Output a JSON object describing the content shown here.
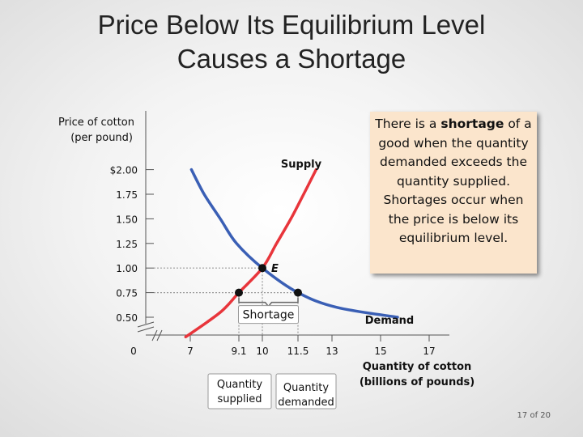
{
  "slide": {
    "title_line1": "Price Below Its Equilibrium Level",
    "title_line2": "Causes a Shortage",
    "page_number": "17 of 20"
  },
  "note": {
    "before": "There is a ",
    "bold": "shortage",
    "after": " of a good when the quantity demanded exceeds the quantity supplied. Shortages occur when the price is below its equilibrium level."
  },
  "colors": {
    "supply": "#e8353b",
    "demand": "#3a5fb5",
    "note_background": "#fbe5cc",
    "guide": "#9a9a9a"
  },
  "chart_data": {
    "type": "line",
    "ylabel_line1": "Price of cotton",
    "ylabel_line2": "(per pound)",
    "xlabel_line1": "Quantity of cotton",
    "xlabel_line2": "(billions of pounds)",
    "y_ticks": [
      {
        "value": 0.5,
        "label": "0.50"
      },
      {
        "value": 0.75,
        "label": "0.75"
      },
      {
        "value": 1.0,
        "label": "1.00"
      },
      {
        "value": 1.25,
        "label": "1.25"
      },
      {
        "value": 1.5,
        "label": "1.50"
      },
      {
        "value": 1.75,
        "label": "1.75"
      },
      {
        "value": 2.0,
        "label": "$2.00"
      }
    ],
    "x_ticks": [
      {
        "value": 7,
        "label": "7"
      },
      {
        "value": 9.1,
        "label": "9.1"
      },
      {
        "value": 10,
        "label": "10"
      },
      {
        "value": 11.5,
        "label": "11.5"
      },
      {
        "value": 13,
        "label": "13"
      },
      {
        "value": 15,
        "label": "15"
      },
      {
        "value": 17,
        "label": "17"
      }
    ],
    "origin_label": "0",
    "axis_break": true,
    "series": [
      {
        "name": "Supply",
        "points": [
          [
            6.8,
            0.3
          ],
          [
            8.3,
            0.55
          ],
          [
            9.1,
            0.75
          ],
          [
            10.0,
            1.0
          ],
          [
            10.6,
            1.25
          ],
          [
            11.2,
            1.5
          ],
          [
            11.75,
            1.75
          ],
          [
            12.3,
            2.0
          ]
        ]
      },
      {
        "name": "Demand",
        "points": [
          [
            7.05,
            2.0
          ],
          [
            7.6,
            1.75
          ],
          [
            8.3,
            1.5
          ],
          [
            9.0,
            1.25
          ],
          [
            10.0,
            1.0
          ],
          [
            11.5,
            0.75
          ],
          [
            13.2,
            0.6
          ],
          [
            15.7,
            0.5
          ]
        ]
      }
    ],
    "points": [
      {
        "label": "E",
        "x": 10,
        "y": 1.0
      },
      {
        "label": "",
        "x": 9.1,
        "y": 0.75
      },
      {
        "label": "",
        "x": 11.5,
        "y": 0.75
      }
    ],
    "annotations": {
      "shortage": "Shortage",
      "qs_line1": "Quantity",
      "qs_line2": "supplied",
      "qd_line1": "Quantity",
      "qd_line2": "demanded",
      "supply_label": "Supply",
      "demand_label": "Demand",
      "equilibrium_label": "E"
    }
  }
}
